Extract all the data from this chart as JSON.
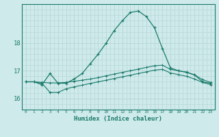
{
  "xlabel": "Humidex (Indice chaleur)",
  "background_color": "#ceeaea",
  "grid_color": "#b8d8d8",
  "line_color": "#1a7a6a",
  "xlim": [
    -0.5,
    23.5
  ],
  "ylim": [
    15.6,
    19.4
  ],
  "yticks": [
    16,
    17,
    18
  ],
  "xticks": [
    0,
    1,
    2,
    3,
    4,
    5,
    6,
    7,
    8,
    9,
    10,
    11,
    12,
    13,
    14,
    15,
    16,
    17,
    18,
    19,
    20,
    21,
    22,
    23
  ],
  "series1_x": [
    0,
    1,
    2,
    3,
    4,
    5,
    6,
    7,
    8,
    9,
    10,
    11,
    12,
    13,
    14,
    15,
    16,
    17,
    18,
    19,
    20,
    21,
    22,
    23
  ],
  "series1_y": [
    16.6,
    16.6,
    16.5,
    16.9,
    16.55,
    16.55,
    16.7,
    16.9,
    17.25,
    17.6,
    18.0,
    18.45,
    18.8,
    19.1,
    19.15,
    18.95,
    18.55,
    17.8,
    17.1,
    17.0,
    16.95,
    16.85,
    16.6,
    16.55
  ],
  "series2_x": [
    0,
    1,
    2,
    3,
    4,
    5,
    6,
    7,
    8,
    9,
    10,
    11,
    12,
    13,
    14,
    15,
    16,
    17,
    18,
    19,
    20,
    21,
    22,
    23
  ],
  "series2_y": [
    16.6,
    16.6,
    16.58,
    16.56,
    16.56,
    16.58,
    16.62,
    16.66,
    16.7,
    16.75,
    16.82,
    16.88,
    16.94,
    17.0,
    17.06,
    17.12,
    17.18,
    17.2,
    17.05,
    17.0,
    16.94,
    16.85,
    16.68,
    16.58
  ],
  "series3_x": [
    0,
    1,
    2,
    3,
    4,
    5,
    6,
    7,
    8,
    9,
    10,
    11,
    12,
    13,
    14,
    15,
    16,
    17,
    18,
    19,
    20,
    21,
    22,
    23
  ],
  "series3_y": [
    16.6,
    16.6,
    16.55,
    16.22,
    16.22,
    16.35,
    16.42,
    16.48,
    16.54,
    16.6,
    16.66,
    16.72,
    16.78,
    16.84,
    16.9,
    16.96,
    17.02,
    17.05,
    16.92,
    16.86,
    16.8,
    16.7,
    16.58,
    16.5
  ]
}
